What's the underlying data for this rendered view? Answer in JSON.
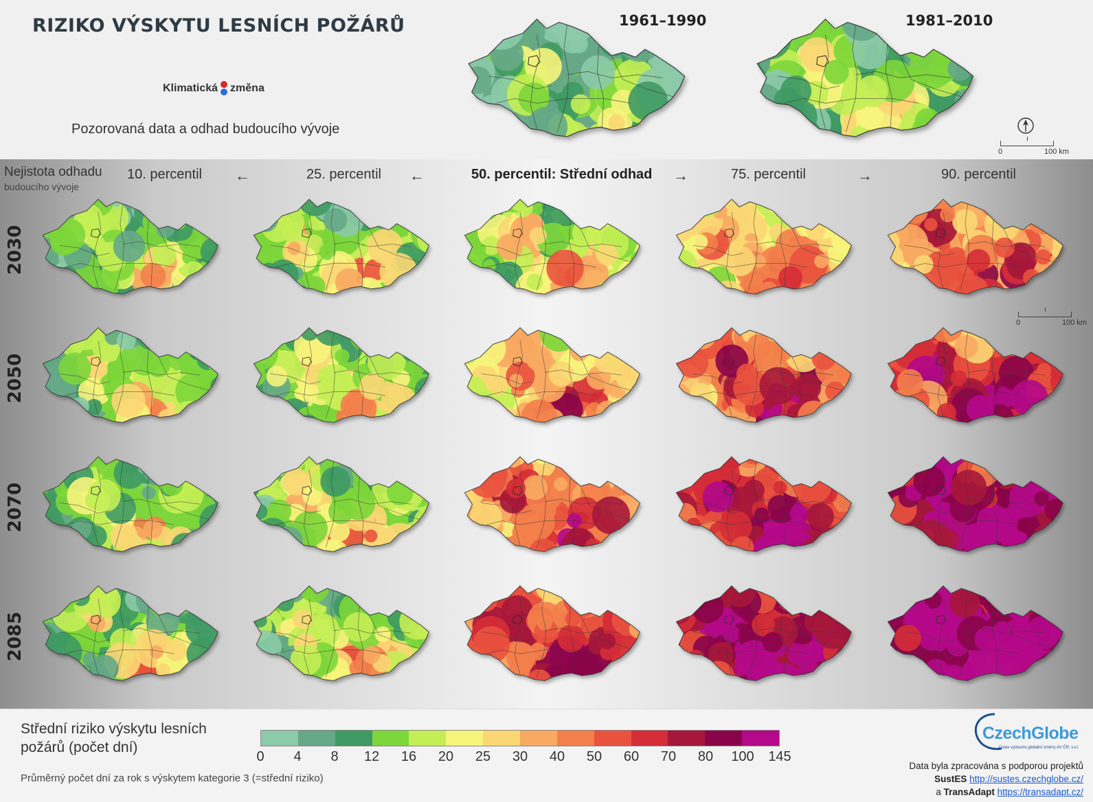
{
  "header": {
    "title": "RIZIKO VÝSKYTU LESNÍCH POŽÁRŮ",
    "logo_word1": "Klimatická",
    "logo_word2": "změna",
    "subtitle": "Pozorovaná data a odhad budoucího vývoje"
  },
  "observed": {
    "periods": [
      {
        "label": "1961–1990",
        "level": 0.12
      },
      {
        "label": "1981–2010",
        "level": 0.2
      }
    ]
  },
  "scale": {
    "zero": "0",
    "distance": "100 km"
  },
  "uncertainty": {
    "title": "Nejistota odhadu",
    "subtitle": "budoucího vývoje"
  },
  "percentiles": [
    "10. percentil",
    "25. percentil",
    "50. percentil: Střední odhad",
    "75. percentil",
    "90. percentil"
  ],
  "arrows": [
    "←",
    "←",
    "→",
    "→"
  ],
  "years": [
    "2030",
    "2050",
    "2070",
    "2085"
  ],
  "grid_levels": [
    [
      0.2,
      0.25,
      0.32,
      0.45,
      0.56
    ],
    [
      0.22,
      0.27,
      0.45,
      0.62,
      0.72
    ],
    [
      0.22,
      0.27,
      0.58,
      0.75,
      0.86
    ],
    [
      0.22,
      0.27,
      0.66,
      0.85,
      0.96
    ]
  ],
  "legend": {
    "title": "Střední riziko výskytu lesních požárů (počet dní)",
    "note": "Průměrný počet dní za rok s výskytem kategorie 3 (=střední riziko)",
    "ticks": [
      "0",
      "4",
      "8",
      "12",
      "16",
      "20",
      "25",
      "30",
      "40",
      "50",
      "60",
      "70",
      "80",
      "100",
      "145"
    ],
    "colors": [
      "#8ccaa9",
      "#66a887",
      "#3f9a63",
      "#7dd63a",
      "#c4ee55",
      "#f7f47c",
      "#fbd774",
      "#f8aa62",
      "#f37f4b",
      "#e9523e",
      "#d52d37",
      "#a6173a",
      "#8a0449",
      "#b40989"
    ]
  },
  "footer": {
    "org_name": "CzechGlobe",
    "org_sub": "Ústav výzkumu globální změny AV ČR, v.v.i.",
    "credit_line": "Data byla zpracována s podporou projektů",
    "project1": "SustES",
    "project1_url": "http://sustes.czechglobe.cz/",
    "and": "a",
    "project2": "TransAdapt",
    "project2_url": "https://transadapt.cz/"
  }
}
